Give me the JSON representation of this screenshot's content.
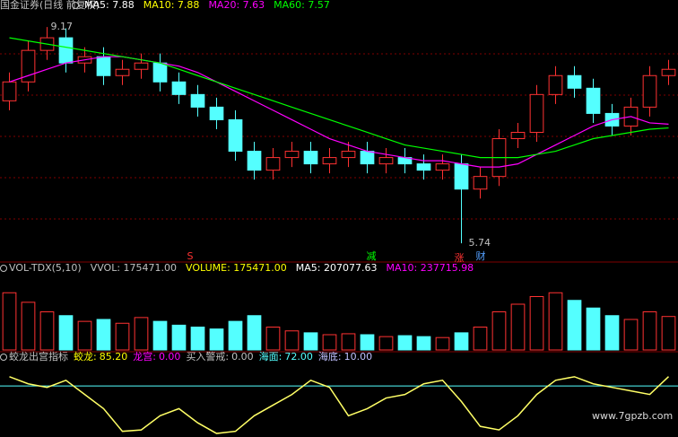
{
  "chart_data": {
    "type": "candlestick",
    "title": "国金证券(日线 前复权)",
    "ma_legend": [
      {
        "text": "MA5: 7.88",
        "color": "#ffffff"
      },
      {
        "text": "MA10: 7.88",
        "color": "#ffff00"
      },
      {
        "text": "MA20: 7.63",
        "color": "#ff00ff"
      },
      {
        "text": "MA60: 7.57",
        "color": "#00ff00"
      }
    ],
    "ylim": [
      5.5,
      9.4
    ],
    "up_color": "#ff3232",
    "down_color": "#54ffff",
    "open": [
      8.0,
      8.3,
      8.8,
      9.0,
      8.6,
      8.7,
      8.4,
      8.5,
      8.6,
      8.3,
      8.1,
      7.9,
      7.7,
      7.2,
      6.9,
      7.1,
      7.2,
      7.0,
      7.1,
      7.2,
      7.0,
      7.1,
      7.0,
      6.9,
      7.0,
      6.6,
      6.8,
      7.4,
      7.5,
      8.1,
      8.4,
      8.2,
      7.8,
      7.6,
      7.9,
      8.4
    ],
    "close": [
      8.3,
      8.8,
      9.0,
      8.6,
      8.7,
      8.4,
      8.5,
      8.6,
      8.3,
      8.1,
      7.9,
      7.7,
      7.2,
      6.9,
      7.1,
      7.2,
      7.0,
      7.1,
      7.2,
      7.0,
      7.1,
      7.0,
      6.9,
      7.0,
      6.6,
      6.8,
      7.4,
      7.5,
      8.1,
      8.4,
      8.2,
      7.8,
      7.6,
      7.9,
      8.4,
      8.5
    ],
    "high": [
      8.45,
      8.95,
      9.17,
      9.15,
      8.85,
      8.85,
      8.65,
      8.75,
      8.75,
      8.45,
      8.25,
      8.05,
      7.85,
      7.35,
      7.25,
      7.35,
      7.35,
      7.25,
      7.35,
      7.35,
      7.25,
      7.25,
      7.15,
      7.15,
      7.15,
      6.95,
      7.55,
      7.65,
      8.25,
      8.55,
      8.55,
      8.35,
      7.95,
      8.05,
      8.55,
      8.65
    ],
    "low": [
      7.85,
      8.15,
      8.65,
      8.45,
      8.45,
      8.25,
      8.25,
      8.35,
      8.15,
      7.95,
      7.75,
      7.55,
      7.05,
      6.75,
      6.75,
      6.95,
      6.85,
      6.85,
      6.95,
      6.85,
      6.85,
      6.85,
      6.75,
      6.75,
      5.74,
      6.45,
      6.65,
      7.25,
      7.35,
      7.95,
      8.05,
      7.65,
      7.45,
      7.45,
      7.75,
      8.25
    ],
    "series": [
      {
        "name": "MA20",
        "color": "#ff00ff",
        "values": [
          8.3,
          8.4,
          8.5,
          8.6,
          8.65,
          8.7,
          8.7,
          8.65,
          8.6,
          8.55,
          8.45,
          8.3,
          8.15,
          8.0,
          7.85,
          7.7,
          7.55,
          7.4,
          7.3,
          7.2,
          7.15,
          7.1,
          7.05,
          7.05,
          7.0,
          6.95,
          6.95,
          7.0,
          7.15,
          7.3,
          7.45,
          7.6,
          7.7,
          7.75,
          7.65,
          7.63
        ]
      },
      {
        "name": "MA60",
        "color": "#00ff00",
        "values": [
          9.0,
          8.95,
          8.9,
          8.85,
          8.8,
          8.75,
          8.7,
          8.65,
          8.6,
          8.5,
          8.4,
          8.3,
          8.2,
          8.1,
          8.0,
          7.9,
          7.8,
          7.7,
          7.6,
          7.5,
          7.4,
          7.3,
          7.25,
          7.2,
          7.15,
          7.1,
          7.1,
          7.1,
          7.15,
          7.2,
          7.3,
          7.4,
          7.45,
          7.5,
          7.55,
          7.57
        ]
      }
    ],
    "markers": [
      {
        "text": "S",
        "color": "#ff3232"
      },
      {
        "text": "减",
        "color": "#00ff00"
      },
      {
        "text": "涨",
        "color": "#ff3232"
      },
      {
        "text": "财",
        "color": "#54a0ff"
      }
    ],
    "volume": {
      "legend": [
        {
          "text": "VOL-TDX(5,10)",
          "color": "#c0c0c0"
        },
        {
          "text": "VVOL: 175471.00",
          "color": "#c0c0c0"
        },
        {
          "text": "VOLUME: 175471.00",
          "color": "#ffff00"
        },
        {
          "text": "MA5: 207077.63",
          "color": "#ffffff"
        },
        {
          "text": "MA10: 237715.98",
          "color": "#ff00ff"
        }
      ],
      "ylim": [
        0,
        400000
      ],
      "values": [
        300000,
        250000,
        200000,
        180000,
        150000,
        160000,
        140000,
        170000,
        150000,
        130000,
        120000,
        110000,
        150000,
        180000,
        120000,
        100000,
        90000,
        80000,
        85000,
        80000,
        70000,
        75000,
        70000,
        65000,
        90000,
        120000,
        200000,
        240000,
        280000,
        300000,
        260000,
        220000,
        180000,
        160000,
        200000,
        175471
      ]
    },
    "indicator": {
      "name": "蛟龙出宫指标",
      "ylim": [
        0,
        100
      ],
      "color": "#ffff66",
      "items": [
        {
          "name": "蛟龙:",
          "value": {
            "value": 85.2,
            "label": "85.20"
          },
          "color": "#ffff00"
        },
        {
          "name": "龙宫:",
          "value": {
            "value": 0,
            "label": "0.00"
          },
          "color": "#ff00ff"
        },
        {
          "name": "买入警戒:",
          "value": {
            "value": 0,
            "label": "0.00"
          },
          "color": "#c0c0c0"
        },
        {
          "name": "海面:",
          "value": {
            "value": 72,
            "label": "72.00"
          },
          "color": "#54ffff"
        },
        {
          "name": "海底:",
          "value": {
            "value": 10,
            "label": "10.00"
          },
          "color": "#c0c0ff"
        }
      ],
      "values": [
        85,
        75,
        70,
        80,
        60,
        40,
        8,
        10,
        30,
        40,
        20,
        5,
        8,
        30,
        45,
        60,
        80,
        70,
        30,
        40,
        55,
        60,
        75,
        80,
        50,
        15,
        10,
        30,
        60,
        80,
        85,
        75,
        70,
        65,
        60,
        85.2
      ]
    },
    "watermark": "www.7gpzb.com"
  }
}
